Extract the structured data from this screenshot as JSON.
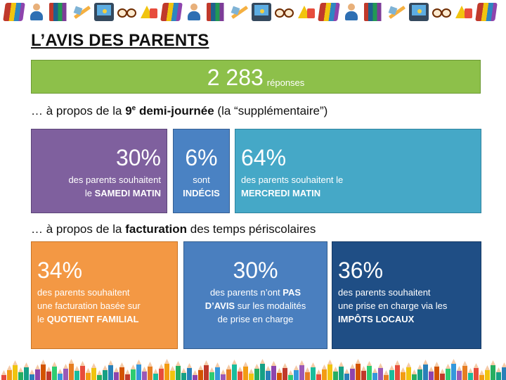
{
  "title": "L’AVIS DES PARENTS",
  "responses": {
    "count": "2 283",
    "unit": "réponses"
  },
  "section1": {
    "prefix": "… à propos de la ",
    "bold_num": "9",
    "sup": "e",
    "bold_rest": " demi-journée",
    "suffix": " (la “supplémentaire”)"
  },
  "section2": {
    "prefix": "… à propos de la ",
    "bold": "facturation",
    "suffix": " des temps périscolaires"
  },
  "boxes1": [
    {
      "pct": "30%",
      "line1": "des parents souhaitent",
      "line2_text": "le ",
      "line2_bold": "SAMEDI MATIN",
      "color": "#7f609e"
    },
    {
      "pct": "6%",
      "line1": "sont",
      "line2_bold": "INDÉCIS",
      "color": "#4a82c3"
    },
    {
      "pct": "64%",
      "line1": "des parents souhaitent le",
      "line2_bold": "MERCREDI MATIN",
      "color": "#45a8c7"
    }
  ],
  "boxes2": [
    {
      "pct": "34%",
      "line1": "des parents souhaitent",
      "line2": "une facturation basée sur",
      "line3_text": "le ",
      "line3_bold": "QUOTIENT FAMILIAL",
      "color": "#f39844"
    },
    {
      "pct": "30%",
      "line1_text": "des parents n’ont ",
      "line1_bold": "PAS",
      "line2_bold": "D’AVIS",
      "line2_text": " sur les modalités",
      "line3": "de prise en charge",
      "color": "#4a7fbf"
    },
    {
      "pct": "36%",
      "line1": "des parents souhaitent",
      "line2": "une prise en charge via les",
      "line3_bold": "IMPÔTS LOCAUX",
      "color": "#1f4e85"
    }
  ],
  "decorations": {
    "top_icons": [
      "book-icon",
      "person-icon",
      "books-icon",
      "pencil-icon",
      "screen-icon",
      "glasses-icon",
      "abc-icon"
    ],
    "bottom": "colored-pencils"
  }
}
